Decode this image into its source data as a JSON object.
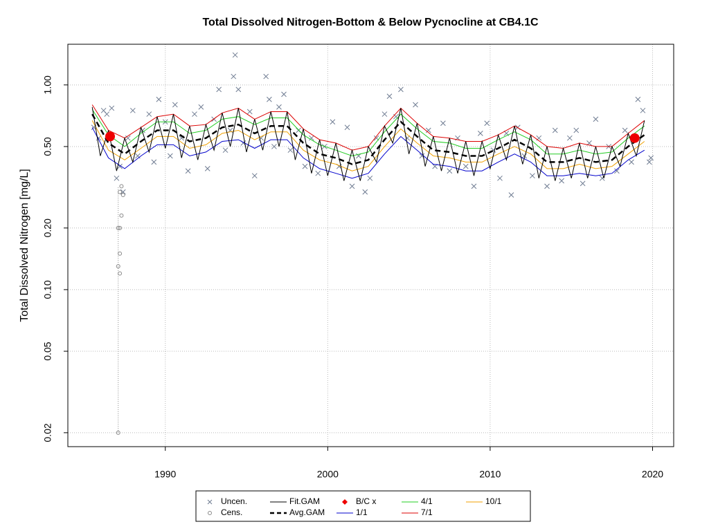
{
  "chart_data": {
    "type": "line",
    "title": "Total Dissolved Nitrogen-Bottom & Below Pycnocline at CB4.1C",
    "y_label": "Total Dissolved Nitrogen [mg/L]",
    "log_y": true,
    "grid": true,
    "xlim": [
      1984,
      2021.3
    ],
    "ylim": [
      0.0171,
      1.58
    ],
    "xticks": [
      1990,
      2000,
      2010,
      2020
    ],
    "yticks": [
      {
        "value": 1.0,
        "label": "1.00"
      },
      {
        "value": 0.5,
        "label": "0.50"
      },
      {
        "value": 0.2,
        "label": "0.20"
      },
      {
        "value": 0.1,
        "label": "0.10"
      },
      0.05,
      0.02
    ],
    "x": [
      1985.5,
      1986.5,
      1987.5,
      1988.5,
      1989.5,
      1990.5,
      1991.5,
      1992.5,
      1993.5,
      1994.5,
      1995.5,
      1996.5,
      1997.5,
      1998.5,
      1999.5,
      2000.5,
      2001.5,
      2002.5,
      2003.5,
      2004.5,
      2005.5,
      2006.5,
      2007.5,
      2008.5,
      2009.5,
      2010.5,
      2011.5,
      2012.5,
      2013.5,
      2014.5,
      2015.5,
      2016.5,
      2017.5,
      2018.5,
      2019.5
    ],
    "series": [
      {
        "name": "Fit.GAM",
        "color": "#000000",
        "width": 1,
        "x": [
          1985.5,
          1986,
          1986.5,
          1987,
          1987.5,
          1988,
          1988.5,
          1989,
          1989.5,
          1990,
          1990.5,
          1991,
          1991.5,
          1992,
          1992.5,
          1993,
          1993.5,
          1994,
          1994.5,
          1995,
          1995.5,
          1996,
          1996.5,
          1997,
          1997.5,
          1998,
          1998.5,
          1999,
          1999.5,
          2000,
          2000.5,
          2001,
          2001.5,
          2002,
          2002.5,
          2003,
          2003.5,
          2004,
          2004.5,
          2005,
          2005.5,
          2006,
          2006.5,
          2007,
          2007.5,
          2008,
          2008.5,
          2009,
          2009.5,
          2010,
          2010.5,
          2011,
          2011.5,
          2012,
          2012.5,
          2013,
          2013.5,
          2014,
          2014.5,
          2015,
          2015.5,
          2016,
          2016.5,
          2017,
          2017.5,
          2018,
          2018.5,
          2019,
          2019.5
        ],
        "values": [
          0.78,
          0.45,
          0.6,
          0.38,
          0.55,
          0.42,
          0.62,
          0.47,
          0.7,
          0.49,
          0.72,
          0.44,
          0.63,
          0.43,
          0.64,
          0.48,
          0.73,
          0.5,
          0.77,
          0.47,
          0.68,
          0.48,
          0.74,
          0.5,
          0.74,
          0.43,
          0.61,
          0.37,
          0.54,
          0.36,
          0.52,
          0.34,
          0.48,
          0.34,
          0.5,
          0.42,
          0.63,
          0.52,
          0.77,
          0.46,
          0.65,
          0.4,
          0.56,
          0.38,
          0.55,
          0.37,
          0.53,
          0.36,
          0.53,
          0.39,
          0.57,
          0.43,
          0.63,
          0.41,
          0.57,
          0.35,
          0.5,
          0.34,
          0.49,
          0.35,
          0.52,
          0.35,
          0.5,
          0.35,
          0.5,
          0.4,
          0.58,
          0.45,
          0.67
        ]
      },
      {
        "name": "Avg.GAM",
        "color": "#000000",
        "width": 2.5,
        "dashed": true,
        "values": [
          0.72,
          0.52,
          0.46,
          0.53,
          0.6,
          0.6,
          0.53,
          0.55,
          0.62,
          0.64,
          0.58,
          0.63,
          0.63,
          0.52,
          0.46,
          0.44,
          0.41,
          0.43,
          0.54,
          0.66,
          0.56,
          0.48,
          0.47,
          0.45,
          0.45,
          0.49,
          0.54,
          0.49,
          0.42,
          0.42,
          0.44,
          0.42,
          0.43,
          0.5,
          0.57
        ]
      },
      {
        "name": "1/1",
        "color": "#0000cc",
        "width": 1,
        "values": [
          0.62,
          0.44,
          0.39,
          0.45,
          0.51,
          0.51,
          0.45,
          0.47,
          0.53,
          0.54,
          0.49,
          0.54,
          0.54,
          0.44,
          0.39,
          0.37,
          0.35,
          0.37,
          0.46,
          0.56,
          0.48,
          0.41,
          0.4,
          0.38,
          0.38,
          0.42,
          0.46,
          0.42,
          0.36,
          0.36,
          0.37,
          0.36,
          0.37,
          0.43,
          0.48
        ]
      },
      {
        "name": "4/1",
        "color": "#22cc22",
        "width": 1,
        "values": [
          0.76,
          0.57,
          0.5,
          0.58,
          0.66,
          0.66,
          0.58,
          0.6,
          0.68,
          0.7,
          0.64,
          0.69,
          0.69,
          0.57,
          0.51,
          0.48,
          0.45,
          0.47,
          0.59,
          0.72,
          0.61,
          0.53,
          0.52,
          0.49,
          0.49,
          0.54,
          0.59,
          0.54,
          0.46,
          0.46,
          0.48,
          0.46,
          0.47,
          0.55,
          0.63
        ]
      },
      {
        "name": "7/1",
        "color": "#dd0000",
        "width": 1,
        "values": [
          0.8,
          0.6,
          0.55,
          0.62,
          0.7,
          0.72,
          0.63,
          0.64,
          0.73,
          0.77,
          0.68,
          0.74,
          0.74,
          0.61,
          0.54,
          0.52,
          0.48,
          0.5,
          0.63,
          0.77,
          0.65,
          0.56,
          0.55,
          0.53,
          0.53,
          0.57,
          0.63,
          0.57,
          0.5,
          0.49,
          0.52,
          0.5,
          0.5,
          0.58,
          0.67
        ]
      },
      {
        "name": "10/1",
        "color": "#f0a000",
        "width": 1,
        "values": [
          0.67,
          0.48,
          0.43,
          0.49,
          0.56,
          0.56,
          0.49,
          0.51,
          0.58,
          0.6,
          0.54,
          0.59,
          0.59,
          0.48,
          0.43,
          0.41,
          0.38,
          0.4,
          0.5,
          0.61,
          0.52,
          0.45,
          0.44,
          0.42,
          0.42,
          0.46,
          0.5,
          0.46,
          0.39,
          0.39,
          0.41,
          0.39,
          0.4,
          0.46,
          0.53
        ]
      }
    ],
    "points": [
      {
        "name": "Uncen.",
        "marker": "x",
        "color": "#6e7b91",
        "x": [
          1985.6,
          1985.9,
          1986.2,
          1986.4,
          1986.7,
          1987.0,
          1987.2,
          1987.4,
          1987.7,
          1988.0,
          1988.3,
          1988.6,
          1989.0,
          1989.3,
          1989.6,
          1990.0,
          1990.3,
          1990.6,
          1991.0,
          1991.4,
          1991.8,
          1992.2,
          1992.6,
          1993.0,
          1993.3,
          1993.7,
          1994.0,
          1994.2,
          1994.3,
          1994.5,
          1994.8,
          1995.2,
          1995.5,
          1995.9,
          1996.2,
          1996.4,
          1996.7,
          1997.0,
          1997.3,
          1997.7,
          1998.2,
          1998.6,
          1999.0,
          1999.4,
          1999.8,
          2000.3,
          2000.7,
          2001.2,
          2001.5,
          2001.9,
          2002.3,
          2002.6,
          2003.0,
          2003.5,
          2003.8,
          2004.2,
          2004.5,
          2004.9,
          2005.4,
          2005.8,
          2006.2,
          2006.6,
          2007.1,
          2007.5,
          2008.0,
          2008.5,
          2009.0,
          2009.4,
          2009.8,
          2010.2,
          2010.6,
          2011.0,
          2011.3,
          2011.7,
          2012.1,
          2012.6,
          2013.0,
          2013.5,
          2014.0,
          2014.4,
          2014.9,
          2015.3,
          2015.7,
          2016.1,
          2016.5,
          2016.9,
          2017.3,
          2017.8,
          2018.3,
          2018.7,
          2019.1,
          2019.4,
          2019.8,
          2019.9
        ],
        "values": [
          0.62,
          0.55,
          0.75,
          0.72,
          0.77,
          0.35,
          0.4,
          0.3,
          0.55,
          0.75,
          0.45,
          0.6,
          0.72,
          0.42,
          0.85,
          0.66,
          0.45,
          0.8,
          0.55,
          0.38,
          0.72,
          0.78,
          0.39,
          0.68,
          0.95,
          0.48,
          0.6,
          1.1,
          1.4,
          0.95,
          0.52,
          0.74,
          0.36,
          0.55,
          1.1,
          0.85,
          0.5,
          0.78,
          0.9,
          0.48,
          0.6,
          0.4,
          0.55,
          0.37,
          0.5,
          0.66,
          0.4,
          0.62,
          0.32,
          0.45,
          0.3,
          0.35,
          0.55,
          0.72,
          0.88,
          0.7,
          0.95,
          0.55,
          0.8,
          0.45,
          0.6,
          0.4,
          0.65,
          0.38,
          0.55,
          0.4,
          0.32,
          0.58,
          0.65,
          0.48,
          0.35,
          0.58,
          0.29,
          0.62,
          0.45,
          0.36,
          0.55,
          0.32,
          0.6,
          0.34,
          0.55,
          0.6,
          0.33,
          0.52,
          0.68,
          0.35,
          0.5,
          0.38,
          0.6,
          0.42,
          0.85,
          0.75,
          0.42,
          0.44
        ]
      },
      {
        "name": "Cens.",
        "marker": "o",
        "color": "#888888",
        "x": [
          1987.1,
          1987.1,
          1987.2,
          1987.2,
          1987.1,
          1987.2,
          1987.3,
          1987.2,
          1987.3,
          1987.4
        ],
        "values": [
          0.02,
          0.13,
          0.12,
          0.15,
          0.2,
          0.2,
          0.23,
          0.3,
          0.32,
          0.29
        ]
      },
      {
        "name": "B/C x",
        "marker": "dot",
        "color": "#ee0000",
        "x": [
          1986.6,
          2018.9
        ],
        "values": [
          0.56,
          0.55
        ]
      }
    ]
  }
}
